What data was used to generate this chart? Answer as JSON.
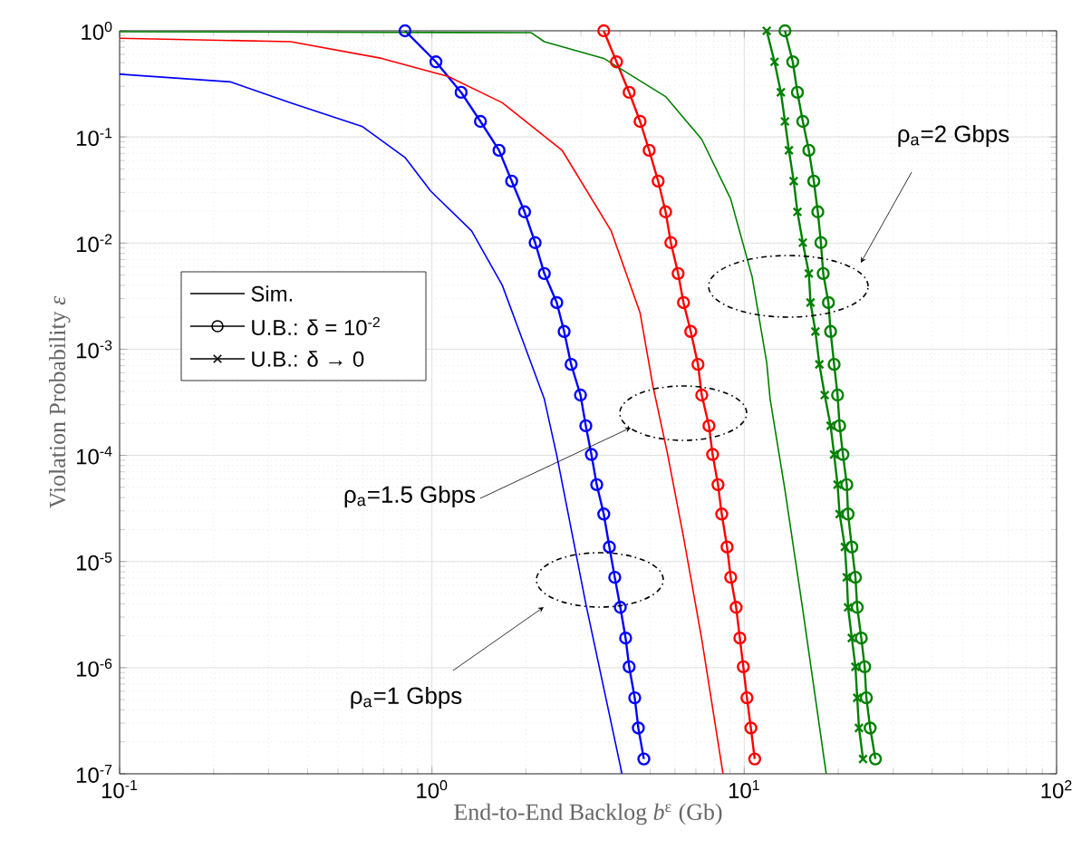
{
  "chart_data": {
    "type": "line",
    "xlabel": "End-to-End Backlog *b*$^{ε}$ (Gb)",
    "ylabel": "Violation Probability *ε*",
    "log": "xy",
    "grid": true,
    "line_style": "solid",
    "xlim": [
      0.1,
      100
    ],
    "ylim": [
      1e-07,
      1
    ],
    "xticks": [
      {
        "value": 0.1,
        "label": "10$^{-1}$"
      },
      {
        "value": 1,
        "label": "10$^{0}$"
      },
      {
        "value": 10,
        "label": "10$^{1}$"
      },
      {
        "value": 100,
        "label": "10$^{2}$"
      }
    ],
    "yticks": [
      {
        "value": 1e-07,
        "label": "10$^{-7}$"
      },
      {
        "value": 1e-06,
        "label": "10$^{-6}$"
      },
      {
        "value": 1e-05,
        "label": "10$^{-5}$"
      },
      {
        "value": 0.0001,
        "label": "10$^{-4}$"
      },
      {
        "value": 0.001,
        "label": "10$^{-3}$"
      },
      {
        "value": 0.01,
        "label": "10$^{-2}$"
      },
      {
        "value": 0.1,
        "label": "10$^{-1}$"
      },
      {
        "value": 1,
        "label": "10$^{0}$"
      }
    ],
    "series": [
      {
        "color": "#0000ff",
        "marker": "none",
        "x": [
          0.1,
          0.227,
          0.353,
          0.6,
          0.82,
          0.99,
          1.34,
          1.68,
          2.0,
          2.29,
          2.51,
          3.11,
          4.06
        ],
        "values": [
          0.39,
          0.33,
          0.21,
          0.125,
          0.064,
          0.031,
          0.013,
          0.004,
          0.001,
          0.00034,
          0.0001,
          4e-06,
          1e-07
        ]
      },
      {
        "color": "#0000ff",
        "marker": "circle",
        "x": [
          0.82,
          1.03,
          1.24,
          1.43,
          1.64,
          1.8,
          1.98,
          2.14,
          2.29,
          2.51,
          2.65,
          2.79,
          2.99,
          3.11,
          3.24,
          3.37,
          3.55,
          3.7,
          3.85,
          4.01,
          4.17,
          4.28,
          4.46,
          4.58,
          4.77
        ],
        "values": [
          1,
          0.51,
          0.263,
          0.14,
          0.0748,
          0.0384,
          0.0197,
          0.0101,
          0.00517,
          0.00275,
          0.00147,
          0.00072,
          0.00037,
          0.00019,
          0.000102,
          5.3e-05,
          2.8e-05,
          1.37e-05,
          7.1e-06,
          3.7e-06,
          1.9e-06,
          1.02e-06,
          5.2e-07,
          2.7e-07,
          1.38e-07
        ]
      },
      {
        "color": "#ff0000",
        "marker": "none",
        "x": [
          0.1,
          0.353,
          0.69,
          1.13,
          1.68,
          2.61,
          3.75,
          4.64,
          5.1,
          5.67,
          6.39,
          7.31,
          8.55
        ],
        "values": [
          0.85,
          0.79,
          0.55,
          0.37,
          0.21,
          0.075,
          0.013,
          0.0022,
          0.00045,
          0.000106,
          1.7e-05,
          1.86e-06,
          1e-07
        ]
      },
      {
        "color": "#ff0000",
        "marker": "circle",
        "x": [
          3.55,
          3.9,
          4.28,
          4.64,
          4.96,
          5.3,
          5.6,
          5.82,
          6.14,
          6.39,
          6.74,
          7.11,
          7.31,
          7.71,
          7.92,
          8.24,
          8.47,
          8.81,
          9.05,
          9.42,
          9.68,
          9.93,
          10.2,
          10.5,
          10.8
        ],
        "values": [
          1,
          0.51,
          0.263,
          0.14,
          0.0748,
          0.0384,
          0.0197,
          0.0101,
          0.00517,
          0.00275,
          0.00147,
          0.00072,
          0.00037,
          0.00019,
          0.000102,
          5.3e-05,
          2.8e-05,
          1.37e-05,
          7.1e-06,
          3.7e-06,
          1.9e-06,
          1.02e-06,
          5.2e-07,
          2.7e-07,
          1.38e-07
        ]
      },
      {
        "color": "#008000",
        "marker": "none",
        "x": [
          0.1,
          2.08,
          2.29,
          3.55,
          5.6,
          7.31,
          9.05,
          10.6,
          11.8,
          12.1,
          13.5,
          15.4,
          18.3
        ],
        "values": [
          0.98,
          0.96,
          0.79,
          0.55,
          0.24,
          0.095,
          0.026,
          0.0048,
          0.00075,
          0.00034,
          4.7e-05,
          3.5e-06,
          1e-07
        ]
      },
      {
        "color": "#008000",
        "marker": "circle",
        "x": [
          13.5,
          14.3,
          14.8,
          15.4,
          16.1,
          16.7,
          17.2,
          17.6,
          17.9,
          18.6,
          18.9,
          19.4,
          19.9,
          20.2,
          20.7,
          21.3,
          21.5,
          22.1,
          22.7,
          23.0,
          23.7,
          24.3,
          24.6,
          25.3,
          26.3
        ],
        "values": [
          1,
          0.51,
          0.263,
          0.14,
          0.0748,
          0.0384,
          0.0197,
          0.0101,
          0.00517,
          0.00275,
          0.00147,
          0.00072,
          0.00037,
          0.00019,
          0.000102,
          5.3e-05,
          2.8e-05,
          1.37e-05,
          7.1e-06,
          3.7e-06,
          1.9e-06,
          1.02e-06,
          5.2e-07,
          2.7e-07,
          1.38e-07
        ]
      },
      {
        "color": "#008000",
        "marker": "cross",
        "x": [
          11.8,
          12.5,
          13.1,
          13.5,
          13.9,
          14.4,
          14.8,
          15.4,
          16.1,
          16.3,
          16.9,
          17.4,
          18.1,
          18.9,
          19.4,
          19.9,
          20.2,
          21.0,
          21.3,
          21.5,
          22.1,
          22.7,
          23.0,
          23.3,
          24.0
        ],
        "values": [
          1,
          0.51,
          0.263,
          0.14,
          0.0748,
          0.0384,
          0.0197,
          0.0101,
          0.00517,
          0.00275,
          0.00147,
          0.00072,
          0.00037,
          0.00019,
          0.000102,
          5.3e-05,
          2.8e-05,
          1.37e-05,
          7.1e-06,
          3.7e-06,
          1.9e-06,
          1.02e-06,
          5.2e-07,
          2.7e-07,
          1.38e-07
        ]
      }
    ],
    "annotations": [
      "ρ$_{a}$=2 Gbps",
      "ρ$_{a}$=1.5 Gbps",
      "ρ$_{a}$=1 Gbps",
      "Sim.",
      "U.B.: δ = 10$^{-2}$",
      "U.B.: δ → 0"
    ]
  }
}
